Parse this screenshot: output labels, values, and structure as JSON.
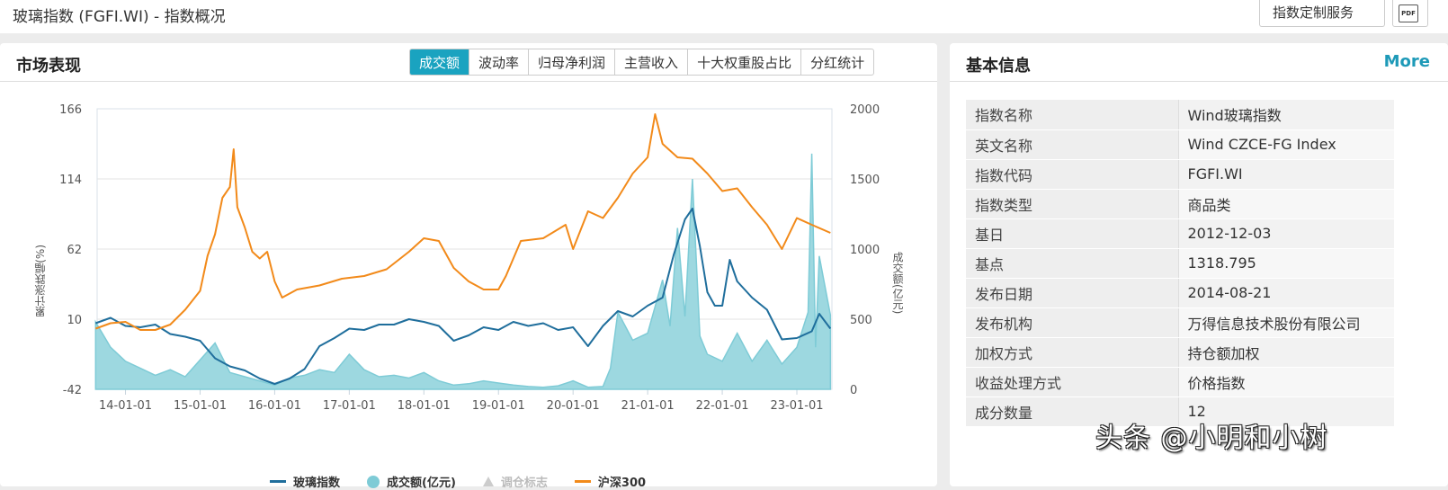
{
  "header": {
    "title": "玻璃指数 (FGFI.WI) - 指数概况",
    "custom_service_button": "指数定制服务",
    "pdf_button": "PDF"
  },
  "market": {
    "title": "市场表现",
    "tabs": [
      {
        "label": "成交额",
        "active": true
      },
      {
        "label": "波动率",
        "active": false
      },
      {
        "label": "归母净利润",
        "active": false
      },
      {
        "label": "主营收入",
        "active": false
      },
      {
        "label": "十大权重股占比",
        "active": false
      },
      {
        "label": "分红统计",
        "active": false
      }
    ]
  },
  "basic_info": {
    "title": "基本信息",
    "more_label": "More",
    "rows": [
      {
        "key": "指数名称",
        "value": "Wind玻璃指数"
      },
      {
        "key": "英文名称",
        "value": "Wind CZCE-FG Index"
      },
      {
        "key": "指数代码",
        "value": "FGFI.WI"
      },
      {
        "key": "指数类型",
        "value": "商品类"
      },
      {
        "key": "基日",
        "value": "2012-12-03"
      },
      {
        "key": "基点",
        "value": "1318.795"
      },
      {
        "key": "发布日期",
        "value": "2014-08-21"
      },
      {
        "key": "发布机构",
        "value": "万得信息技术股份有限公司"
      },
      {
        "key": "加权方式",
        "value": "持仓额加权"
      },
      {
        "key": "收益处理方式",
        "value": "价格指数"
      },
      {
        "key": "成分数量",
        "value": "12"
      }
    ]
  },
  "watermark": "头条 @小明和小树",
  "colors": {
    "glass_index": "#1f6e9c",
    "turnover": "#7ecbd6",
    "turnover_fill": "#9dd8e0",
    "hs300": "#f28a1a",
    "accent": "#1aa3c0",
    "rebalance": "#cccccc"
  },
  "chart_data": {
    "type": "line",
    "title": "",
    "xlabel": "",
    "ylabel": "累计涨跌幅(%)",
    "ylabel_right": "成交额(亿元)",
    "ylim": [
      -42,
      166
    ],
    "ylim_right": [
      0,
      2000
    ],
    "yticks": [
      "166",
      "114",
      "62",
      "10",
      "-42"
    ],
    "yticks_right": [
      "2000",
      "1500",
      "1000",
      "500",
      "0"
    ],
    "categories": [
      "14-01-01",
      "15-01-01",
      "16-01-01",
      "17-01-01",
      "18-01-01",
      "19-01-01",
      "20-01-01",
      "21-01-01",
      "22-01-01",
      "23-01-01"
    ],
    "grid": true,
    "legend_position": "bottom",
    "legend": [
      "玻璃指数",
      "成交额(亿元)",
      "调仓标志",
      "沪深300"
    ],
    "x_range": [
      "2013-08",
      "2023-06"
    ],
    "series": [
      {
        "name": "玻璃指数",
        "axis": "left",
        "type": "line",
        "x": [
          2013.6,
          2013.8,
          2014.0,
          2014.2,
          2014.4,
          2014.6,
          2014.8,
          2015.0,
          2015.2,
          2015.4,
          2015.6,
          2015.8,
          2016.0,
          2016.2,
          2016.4,
          2016.6,
          2016.8,
          2017.0,
          2017.2,
          2017.4,
          2017.6,
          2017.8,
          2018.0,
          2018.2,
          2018.4,
          2018.6,
          2018.8,
          2019.0,
          2019.2,
          2019.4,
          2019.6,
          2019.8,
          2020.0,
          2020.2,
          2020.4,
          2020.6,
          2020.8,
          2021.0,
          2021.2,
          2021.35,
          2021.5,
          2021.6,
          2021.7,
          2021.8,
          2021.9,
          2022.0,
          2022.1,
          2022.2,
          2022.4,
          2022.6,
          2022.8,
          2023.0,
          2023.2,
          2023.3,
          2023.45
        ],
        "values": [
          7,
          11,
          5,
          4,
          6,
          -1,
          -3,
          -6,
          -19,
          -25,
          -28,
          -34,
          -38,
          -34,
          -27,
          -10,
          -4,
          3,
          2,
          6,
          6,
          10,
          8,
          5,
          -6,
          -2,
          4,
          2,
          8,
          5,
          7,
          2,
          4,
          -10,
          5,
          16,
          12,
          20,
          26,
          58,
          84,
          92,
          64,
          30,
          20,
          20,
          54,
          38,
          26,
          17,
          -5,
          -4,
          1,
          14,
          3
        ]
      },
      {
        "name": "沪深300",
        "axis": "left",
        "type": "line",
        "x": [
          2013.6,
          2013.8,
          2014.0,
          2014.2,
          2014.4,
          2014.6,
          2014.8,
          2015.0,
          2015.1,
          2015.2,
          2015.3,
          2015.4,
          2015.45,
          2015.5,
          2015.6,
          2015.7,
          2015.8,
          2015.9,
          2016.0,
          2016.1,
          2016.3,
          2016.6,
          2016.9,
          2017.2,
          2017.5,
          2017.8,
          2018.0,
          2018.2,
          2018.4,
          2018.6,
          2018.8,
          2019.0,
          2019.1,
          2019.3,
          2019.6,
          2019.9,
          2020.0,
          2020.2,
          2020.4,
          2020.6,
          2020.8,
          2021.0,
          2021.1,
          2021.2,
          2021.4,
          2021.6,
          2021.8,
          2022.0,
          2022.2,
          2022.4,
          2022.6,
          2022.8,
          2023.0,
          2023.2,
          2023.45
        ],
        "values": [
          3,
          7,
          8,
          2,
          2,
          6,
          17,
          31,
          57,
          73,
          100,
          108,
          136,
          93,
          78,
          60,
          55,
          60,
          38,
          26,
          32,
          35,
          40,
          42,
          47,
          60,
          70,
          68,
          48,
          38,
          32,
          32,
          42,
          68,
          70,
          80,
          62,
          90,
          85,
          100,
          118,
          130,
          162,
          140,
          130,
          129,
          118,
          105,
          107,
          93,
          80,
          62,
          85,
          80,
          74
        ]
      },
      {
        "name": "成交额(亿元)",
        "axis": "right",
        "type": "area",
        "x": [
          2013.6,
          2013.8,
          2014.0,
          2014.2,
          2014.4,
          2014.6,
          2014.8,
          2015.0,
          2015.2,
          2015.4,
          2015.6,
          2015.8,
          2016.0,
          2016.2,
          2016.4,
          2016.6,
          2016.8,
          2017.0,
          2017.2,
          2017.4,
          2017.6,
          2017.8,
          2018.0,
          2018.2,
          2018.4,
          2018.6,
          2018.8,
          2019.0,
          2019.2,
          2019.4,
          2019.6,
          2019.8,
          2020.0,
          2020.2,
          2020.4,
          2020.5,
          2020.6,
          2020.8,
          2021.0,
          2021.2,
          2021.3,
          2021.4,
          2021.5,
          2021.6,
          2021.7,
          2021.8,
          2022.0,
          2022.2,
          2022.4,
          2022.6,
          2022.8,
          2023.0,
          2023.15,
          2023.2,
          2023.25,
          2023.3,
          2023.45
        ],
        "values": [
          480,
          300,
          200,
          150,
          100,
          140,
          90,
          210,
          330,
          120,
          90,
          60,
          30,
          80,
          100,
          140,
          120,
          250,
          140,
          90,
          100,
          80,
          120,
          60,
          30,
          40,
          60,
          45,
          30,
          20,
          15,
          25,
          60,
          15,
          20,
          150,
          550,
          350,
          400,
          780,
          450,
          1150,
          520,
          1500,
          380,
          250,
          200,
          400,
          200,
          350,
          180,
          300,
          550,
          1680,
          300,
          950,
          530
        ]
      },
      {
        "name": "调仓标志",
        "axis": "left",
        "type": "scatter",
        "visible": false,
        "x": [],
        "values": []
      }
    ]
  }
}
